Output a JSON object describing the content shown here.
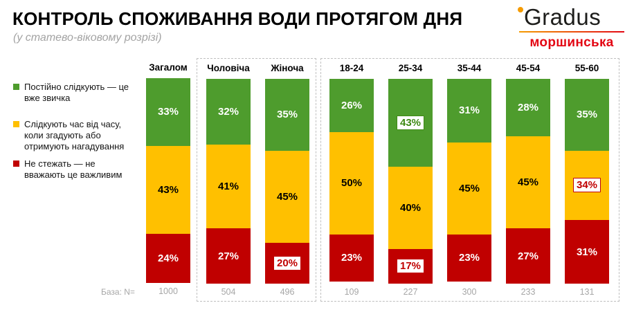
{
  "header": {
    "title": "КОНТРОЛЬ СПОЖИВАННЯ ВОДИ ПРОТЯГОМ ДНЯ",
    "subtitle": "(у статево-віковому розрізі)",
    "logo": {
      "brand": "Gradus",
      "sub_brand": "моршинська",
      "degree_icon_color": "#f59b00",
      "brand_color": "#1d1d1b",
      "sub_brand_color": "#e30613"
    }
  },
  "legend": {
    "items": [
      {
        "id": "constant",
        "label": "Постійно слідкують — це вже звичка",
        "color": "#4e9c2d",
        "label_color": "#ffffff"
      },
      {
        "id": "occasional",
        "label": "Слідкують час від часу, коли згадують або отримують нагадування",
        "color": "#ffc000",
        "label_color": "#000000"
      },
      {
        "id": "never",
        "label": "Не стежать — не вважають це важливим",
        "color": "#c00000",
        "label_color": "#ffffff"
      }
    ]
  },
  "chart_data": {
    "type": "bar",
    "subtype": "stacked-100-percent",
    "unit": "%",
    "scale_total": 100,
    "title": "КОНТРОЛЬ СПОЖИВАННЯ ВОДИ ПРОТЯГОМ ДНЯ (у статево-віковому розрізі)",
    "base_label": "База: N=",
    "stack_order_top_to_bottom": [
      "constant",
      "occasional",
      "never"
    ],
    "highlight_colors": {
      "higher": "#3e8914",
      "lower": "#c00000"
    },
    "groups": [
      {
        "id": "total",
        "dashed_frame": false,
        "columns": [
          {
            "id": "total",
            "label": "Загалом",
            "base_n": "1000",
            "segments": [
              {
                "series": "constant",
                "value": 33,
                "highlight": null
              },
              {
                "series": "occasional",
                "value": 43,
                "highlight": null
              },
              {
                "series": "never",
                "value": 24,
                "highlight": null
              }
            ]
          }
        ]
      },
      {
        "id": "gender",
        "dashed_frame": true,
        "columns": [
          {
            "id": "male",
            "label": "Чоловіча",
            "base_n": "504",
            "segments": [
              {
                "series": "constant",
                "value": 32,
                "highlight": null
              },
              {
                "series": "occasional",
                "value": 41,
                "highlight": null
              },
              {
                "series": "never",
                "value": 27,
                "highlight": null
              }
            ]
          },
          {
            "id": "female",
            "label": "Жіноча",
            "base_n": "496",
            "segments": [
              {
                "series": "constant",
                "value": 35,
                "highlight": null
              },
              {
                "series": "occasional",
                "value": 45,
                "highlight": null
              },
              {
                "series": "never",
                "value": 20,
                "highlight": "lower"
              }
            ]
          }
        ]
      },
      {
        "id": "age",
        "dashed_frame": true,
        "columns": [
          {
            "id": "age-18-24",
            "label": "18-24",
            "base_n": "109",
            "segments": [
              {
                "series": "constant",
                "value": 26,
                "highlight": null
              },
              {
                "series": "occasional",
                "value": 50,
                "highlight": null
              },
              {
                "series": "never",
                "value": 23,
                "highlight": null
              }
            ]
          },
          {
            "id": "age-25-34",
            "label": "25-34",
            "base_n": "227",
            "segments": [
              {
                "series": "constant",
                "value": 43,
                "highlight": "higher"
              },
              {
                "series": "occasional",
                "value": 40,
                "highlight": null
              },
              {
                "series": "never",
                "value": 17,
                "highlight": "lower"
              }
            ]
          },
          {
            "id": "age-35-44",
            "label": "35-44",
            "base_n": "300",
            "segments": [
              {
                "series": "constant",
                "value": 31,
                "highlight": null
              },
              {
                "series": "occasional",
                "value": 45,
                "highlight": null
              },
              {
                "series": "never",
                "value": 23,
                "highlight": null
              }
            ]
          },
          {
            "id": "age-45-54",
            "label": "45-54",
            "base_n": "233",
            "segments": [
              {
                "series": "constant",
                "value": 28,
                "highlight": null
              },
              {
                "series": "occasional",
                "value": 45,
                "highlight": null
              },
              {
                "series": "never",
                "value": 27,
                "highlight": null
              }
            ]
          },
          {
            "id": "age-55-60",
            "label": "55-60",
            "base_n": "131",
            "segments": [
              {
                "series": "constant",
                "value": 35,
                "highlight": null
              },
              {
                "series": "occasional",
                "value": 34,
                "highlight": "lower"
              },
              {
                "series": "never",
                "value": 31,
                "highlight": null
              }
            ]
          }
        ]
      }
    ]
  }
}
